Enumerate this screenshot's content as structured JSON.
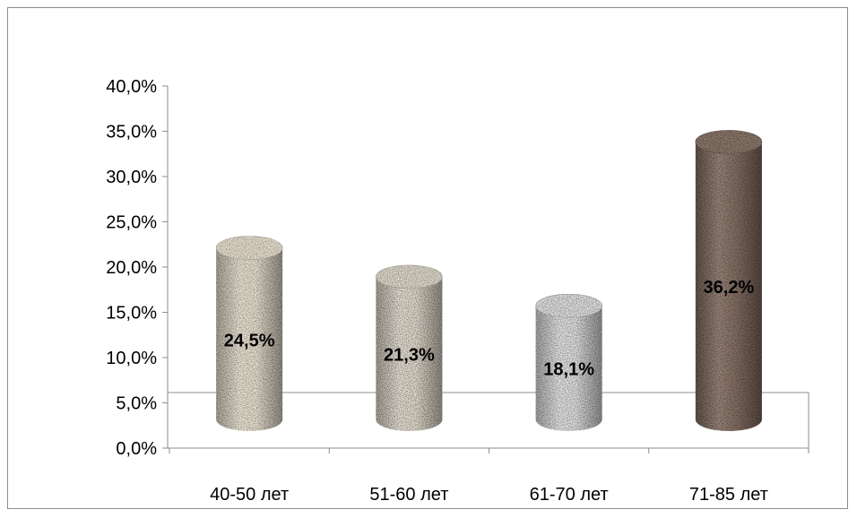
{
  "chart_data": {
    "type": "bar",
    "style": "3d-cylinder",
    "categories": [
      "40-50 лет",
      "51-60 лет",
      "61-70 лет",
      "71-85 лет"
    ],
    "series": [
      {
        "values": [
          24.5,
          21.3,
          18.1,
          36.2
        ],
        "data_labels": [
          "24,5%",
          "21,3%",
          "18,1%",
          "36,2%"
        ],
        "colors": [
          "#efe7d6",
          "#e6dfd1",
          "#e5e5e5",
          "#8a7468"
        ]
      }
    ],
    "yticks": [
      "0,0%",
      "5,0%",
      "10,0%",
      "15,0%",
      "20,0%",
      "25,0%",
      "30,0%",
      "35,0%",
      "40,0%"
    ],
    "ylim": [
      0,
      40
    ],
    "title": "",
    "xlabel": "",
    "ylabel": "",
    "grid": false,
    "legend": "none"
  }
}
